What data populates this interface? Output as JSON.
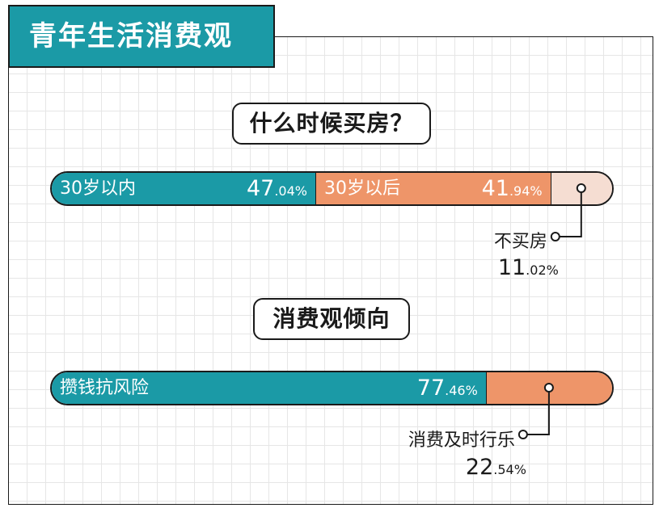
{
  "title": "青年生活消费观",
  "chart_data": [
    {
      "type": "bar",
      "title": "什么时候买房？",
      "stacked": true,
      "orientation": "horizontal",
      "series": [
        {
          "name": "30岁以内",
          "value": 47.04,
          "value_int": "47",
          "value_dec": ".04%",
          "color": "#1b9aa6",
          "label_inside": true
        },
        {
          "name": "30岁以后",
          "value": 41.94,
          "value_int": "41",
          "value_dec": ".94%",
          "color": "#ee9569",
          "label_inside": true
        },
        {
          "name": "不买房",
          "value": 11.02,
          "value_int": "11",
          "value_dec": ".02%",
          "color": "#f5ddd2",
          "label_inside": false
        }
      ]
    },
    {
      "type": "bar",
      "title": "消费观倾向",
      "stacked": true,
      "orientation": "horizontal",
      "series": [
        {
          "name": "攒钱抗风险",
          "value": 77.46,
          "value_int": "77",
          "value_dec": ".46%",
          "color": "#1b9aa6",
          "label_inside": true
        },
        {
          "name": "消费及时行乐",
          "value": 22.54,
          "value_int": "22",
          "value_dec": ".54%",
          "color": "#ee9569",
          "label_inside": false
        }
      ]
    }
  ]
}
